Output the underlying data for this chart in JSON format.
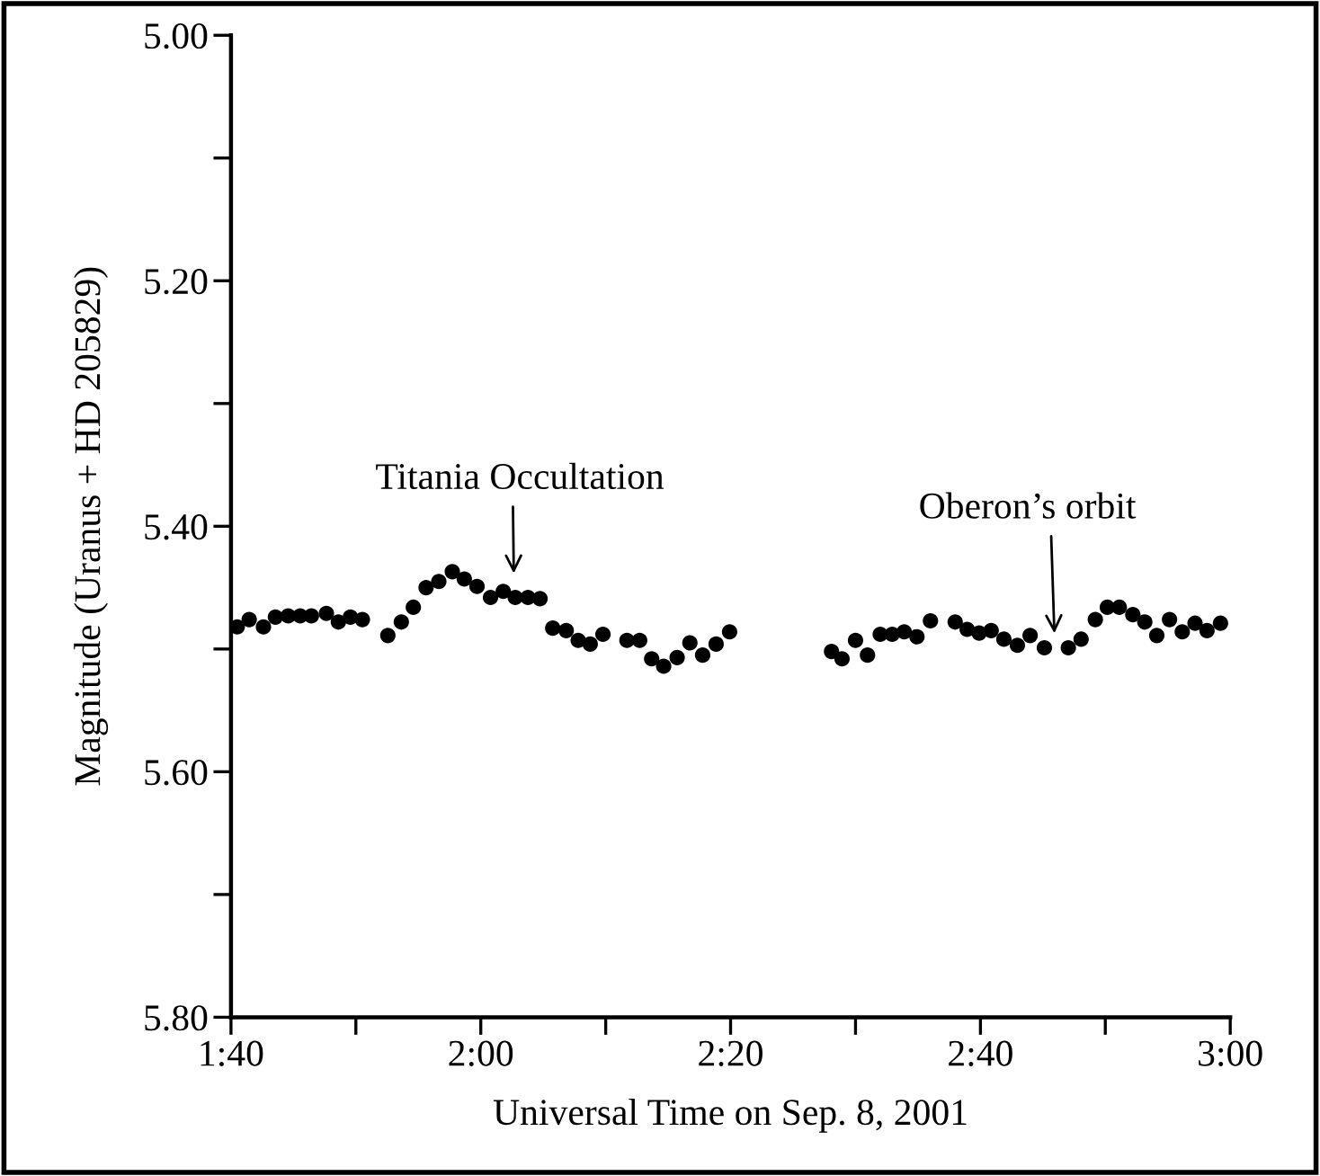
{
  "chart_data": {
    "type": "scatter",
    "xlabel": "Universal Time on Sep. 8, 2001",
    "ylabel": "Magnitude (Uranus + HD 205829)",
    "xlim": [
      1.6667,
      3.0
    ],
    "ylim": [
      5.8,
      5.0
    ],
    "xticks": [
      {
        "value": 1.6667,
        "label": "1:40"
      },
      {
        "value": 1.8333,
        "label": null
      },
      {
        "value": 2.0,
        "label": "2:00"
      },
      {
        "value": 2.1667,
        "label": null
      },
      {
        "value": 2.3333,
        "label": "2:20"
      },
      {
        "value": 2.5,
        "label": null
      },
      {
        "value": 2.6667,
        "label": "2:40"
      },
      {
        "value": 2.8333,
        "label": null
      },
      {
        "value": 3.0,
        "label": "3:00"
      }
    ],
    "yticks": [
      {
        "value": 5.0,
        "label": "5.00"
      },
      {
        "value": 5.1,
        "label": null
      },
      {
        "value": 5.2,
        "label": "5.20"
      },
      {
        "value": 5.3,
        "label": null
      },
      {
        "value": 5.4,
        "label": "5.40"
      },
      {
        "value": 5.5,
        "label": null
      },
      {
        "value": 5.6,
        "label": "5.60"
      },
      {
        "value": 5.7,
        "label": null
      },
      {
        "value": 5.8,
        "label": "5.80"
      }
    ],
    "grid": false,
    "legend": false,
    "marker": "circle",
    "series": [
      {
        "color": "#000000",
        "x": [
          1.675,
          1.691,
          1.71,
          1.726,
          1.743,
          1.759,
          1.774,
          1.794,
          1.81,
          1.826,
          1.842,
          1.876,
          1.894,
          1.91,
          1.927,
          1.944,
          1.962,
          1.978,
          1.995,
          2.013,
          2.03,
          2.046,
          2.063,
          2.079,
          2.096,
          2.114,
          2.13,
          2.146,
          2.163,
          2.195,
          2.212,
          2.228,
          2.244,
          2.262,
          2.279,
          2.296,
          2.314,
          2.332,
          2.468,
          2.482,
          2.5,
          2.516,
          2.533,
          2.549,
          2.565,
          2.582,
          2.6,
          2.633,
          2.649,
          2.665,
          2.681,
          2.698,
          2.716,
          2.733,
          2.752,
          2.784,
          2.801,
          2.82,
          2.836,
          2.852,
          2.87,
          2.886,
          2.902,
          2.919,
          2.936,
          2.953,
          2.969,
          2.987
        ],
        "values": [
          5.482,
          5.476,
          5.482,
          5.474,
          5.473,
          5.473,
          5.473,
          5.471,
          5.478,
          5.474,
          5.476,
          5.489,
          5.478,
          5.466,
          5.45,
          5.445,
          5.437,
          5.443,
          5.449,
          5.458,
          5.453,
          5.458,
          5.458,
          5.459,
          5.483,
          5.485,
          5.493,
          5.496,
          5.488,
          5.493,
          5.493,
          5.508,
          5.514,
          5.507,
          5.495,
          5.505,
          5.496,
          5.486,
          5.502,
          5.508,
          5.493,
          5.505,
          5.488,
          5.488,
          5.486,
          5.49,
          5.477,
          5.478,
          5.484,
          5.487,
          5.485,
          5.492,
          5.497,
          5.489,
          5.499,
          5.499,
          5.492,
          5.476,
          5.466,
          5.466,
          5.472,
          5.478,
          5.489,
          5.476,
          5.486,
          5.479,
          5.485,
          5.479
        ]
      }
    ],
    "annotations": [
      "Titania Occultation",
      "Oberon’s orbit"
    ]
  }
}
